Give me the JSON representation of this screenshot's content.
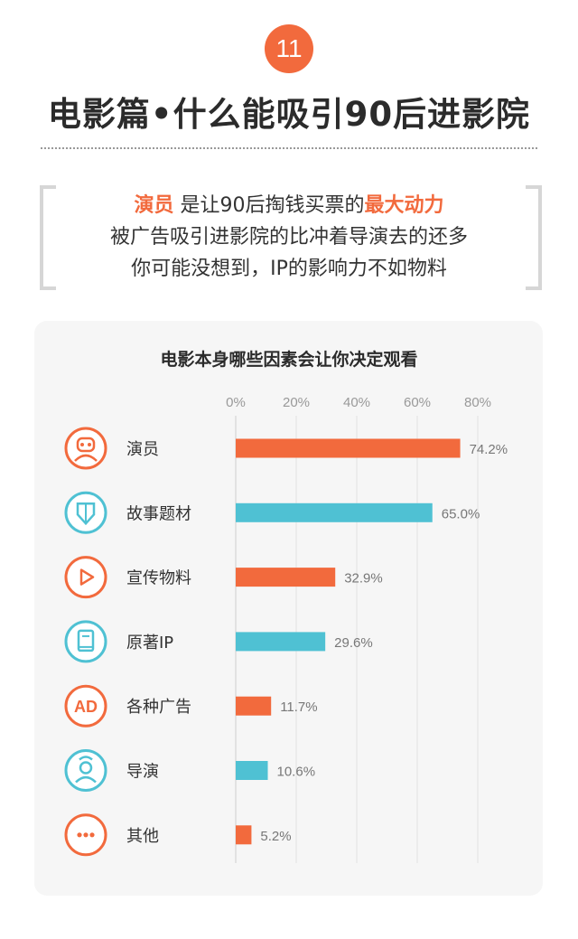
{
  "header": {
    "badge_number": "11",
    "title": "电影篇•什么能吸引90后进影院"
  },
  "intro": {
    "line1_highlight1": "演员",
    "line1_mid": "是让90后掏钱买票的",
    "line1_highlight2": "最大动力",
    "line2": "被广告吸引进影院的比冲着导演去的还多",
    "line3": "你可能没想到，IP的影响力不如物料"
  },
  "chart_data": {
    "type": "bar",
    "orientation": "horizontal",
    "title": "电影本身哪些因素会让你决定观看",
    "x_ticks": [
      "0%",
      "20%",
      "40%",
      "60%",
      "80%"
    ],
    "xlim": [
      0,
      80
    ],
    "categories": [
      "演员",
      "故事题材",
      "宣传物料",
      "原著IP",
      "各种广告",
      "导演",
      "其他"
    ],
    "values": [
      74.2,
      65.0,
      32.9,
      29.6,
      11.7,
      10.6,
      5.2
    ],
    "value_labels": [
      "74.2%",
      "65.0%",
      "32.9%",
      "29.6%",
      "11.7%",
      "10.6%",
      "5.2%"
    ],
    "bar_colors": [
      "#f26a3d",
      "#4fc1d3",
      "#f26a3d",
      "#4fc1d3",
      "#f26a3d",
      "#4fc1d3",
      "#f26a3d"
    ],
    "icons": [
      "actor-icon",
      "shield-icon",
      "play-icon",
      "book-icon",
      "ad-icon",
      "director-icon",
      "more-icon"
    ],
    "icon_texts": [
      "",
      "",
      "",
      "",
      "AD",
      "",
      ""
    ],
    "grid": true
  },
  "colors": {
    "accent": "#f26a3d",
    "secondary": "#4fc1d3"
  }
}
